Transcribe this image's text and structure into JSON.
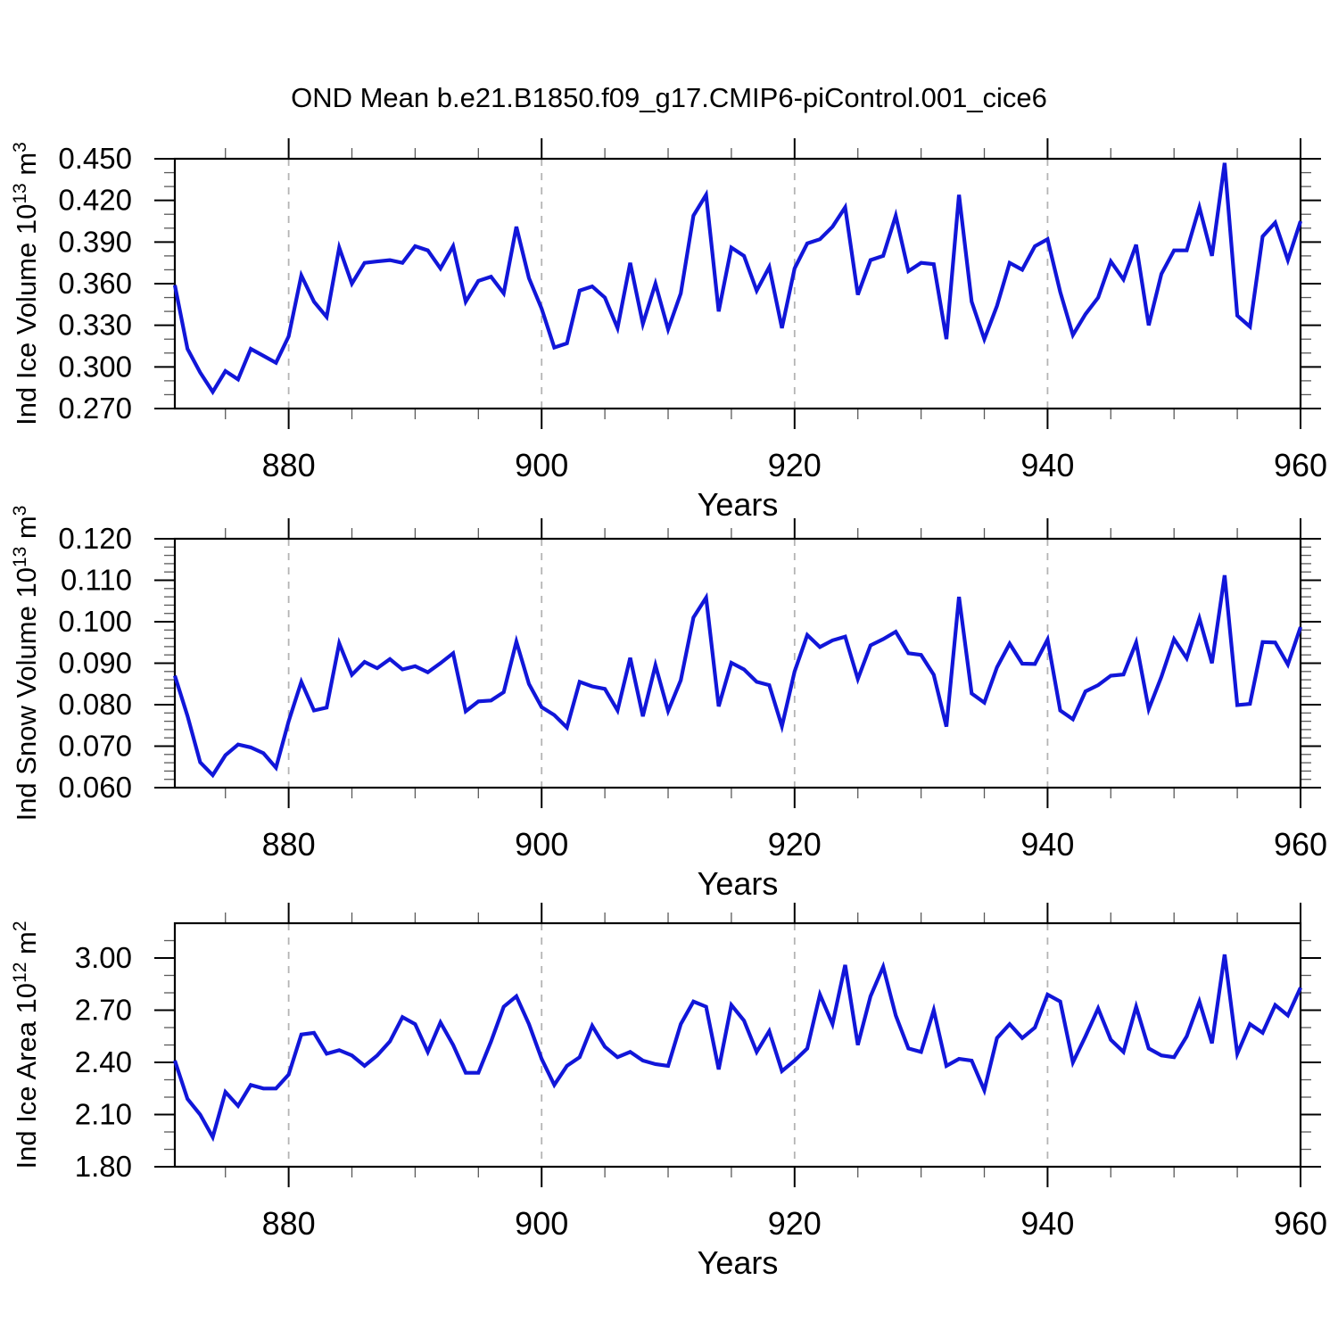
{
  "title": "OND Mean b.e21.B1850.f09_g17.CMIP6-piControl.001_cice6",
  "chart_data": {
    "type": "line",
    "title": "OND Mean b.e21.B1850.f09_g17.CMIP6-piControl.001_cice6",
    "xlabel": "Years",
    "line_color": "#1116d9",
    "gridline_color": "#b4b4b4",
    "grid_style": "vertical dashed at major x ticks",
    "x_axis": {
      "range": [
        871,
        960
      ],
      "major_ticks": [
        880,
        900,
        920,
        940,
        960
      ],
      "tick_labels": [
        "880",
        "900",
        "920",
        "940",
        "960"
      ],
      "minor_ticks": [
        875,
        885,
        890,
        895,
        905,
        910,
        915,
        925,
        930,
        935,
        945,
        950,
        955
      ],
      "gridlines_at": [
        880,
        900,
        920,
        940
      ]
    },
    "x": [
      871,
      872,
      873,
      874,
      875,
      876,
      877,
      878,
      879,
      880,
      881,
      882,
      883,
      884,
      885,
      886,
      887,
      888,
      889,
      890,
      891,
      892,
      893,
      894,
      895,
      896,
      897,
      898,
      899,
      900,
      901,
      902,
      903,
      904,
      905,
      906,
      907,
      908,
      909,
      910,
      911,
      912,
      913,
      914,
      915,
      916,
      917,
      918,
      919,
      920,
      921,
      922,
      923,
      924,
      925,
      926,
      927,
      928,
      929,
      930,
      931,
      932,
      933,
      934,
      935,
      936,
      937,
      938,
      939,
      940,
      941,
      942,
      943,
      944,
      945,
      946,
      947,
      948,
      949,
      950,
      951,
      952,
      953,
      954,
      955,
      956,
      957,
      958,
      959,
      960
    ],
    "series": [
      {
        "id": "ice-volume",
        "name": "Ind Ice Volume",
        "ylabel": "Ind Ice Volume 10^13 m^3",
        "ylabel_parts": {
          "base": "Ind Ice Volume 10",
          "exponent": "13",
          "unit": " m",
          "unit_exponent": "3"
        },
        "ylim": [
          0.27,
          0.45
        ],
        "y_major_ticks": [
          0.27,
          0.3,
          0.33,
          0.36,
          0.39,
          0.42,
          0.45
        ],
        "y_tick_labels": [
          "0.270",
          "0.300",
          "0.330",
          "0.360",
          "0.390",
          "0.420",
          "0.450"
        ],
        "y_minor_ticks": [
          0.28,
          0.29,
          0.31,
          0.32,
          0.34,
          0.35,
          0.37,
          0.38,
          0.4,
          0.41,
          0.43,
          0.44
        ],
        "values": [
          0.359,
          0.313,
          0.296,
          0.282,
          0.297,
          0.291,
          0.313,
          0.308,
          0.303,
          0.322,
          0.366,
          0.347,
          0.336,
          0.386,
          0.36,
          0.375,
          0.376,
          0.377,
          0.375,
          0.387,
          0.384,
          0.371,
          0.387,
          0.347,
          0.362,
          0.365,
          0.353,
          0.401,
          0.364,
          0.342,
          0.314,
          0.317,
          0.355,
          0.358,
          0.35,
          0.328,
          0.375,
          0.331,
          0.36,
          0.327,
          0.353,
          0.409,
          0.424,
          0.34,
          0.386,
          0.38,
          0.355,
          0.372,
          0.328,
          0.371,
          0.389,
          0.392,
          0.401,
          0.415,
          0.352,
          0.377,
          0.38,
          0.409,
          0.369,
          0.375,
          0.374,
          0.32,
          0.424,
          0.347,
          0.32,
          0.344,
          0.375,
          0.37,
          0.387,
          0.392,
          0.354,
          0.323,
          0.338,
          0.35,
          0.376,
          0.363,
          0.388,
          0.33,
          0.367,
          0.384,
          0.384,
          0.415,
          0.38,
          0.447,
          0.337,
          0.329,
          0.394,
          0.404,
          0.377,
          0.405
        ]
      },
      {
        "id": "snow-volume",
        "name": "Ind Snow Volume",
        "ylabel": "Ind Snow Volume 10^13 m^3",
        "ylabel_parts": {
          "base": "Ind Snow Volume 10",
          "exponent": "13",
          "unit": " m",
          "unit_exponent": "3"
        },
        "ylim": [
          0.06,
          0.12
        ],
        "y_major_ticks": [
          0.06,
          0.07,
          0.08,
          0.09,
          0.1,
          0.11,
          0.12
        ],
        "y_tick_labels": [
          "0.060",
          "0.070",
          "0.080",
          "0.090",
          "0.100",
          "0.110",
          "0.120"
        ],
        "y_minor_ticks": [
          0.062,
          0.064,
          0.066,
          0.068,
          0.072,
          0.074,
          0.076,
          0.078,
          0.082,
          0.084,
          0.086,
          0.088,
          0.092,
          0.094,
          0.096,
          0.098,
          0.102,
          0.104,
          0.106,
          0.108,
          0.112,
          0.114,
          0.116,
          0.118
        ],
        "values": [
          0.087,
          0.0773,
          0.0661,
          0.063,
          0.0678,
          0.0704,
          0.0697,
          0.0683,
          0.0648,
          0.076,
          0.0855,
          0.0786,
          0.0793,
          0.0948,
          0.0872,
          0.0903,
          0.0888,
          0.091,
          0.0885,
          0.0893,
          0.0878,
          0.09,
          0.0924,
          0.0784,
          0.0808,
          0.081,
          0.083,
          0.0952,
          0.085,
          0.0794,
          0.0775,
          0.0745,
          0.0855,
          0.0844,
          0.0838,
          0.0786,
          0.0913,
          0.0772,
          0.0895,
          0.0785,
          0.0859,
          0.101,
          0.1058,
          0.0796,
          0.0901,
          0.0885,
          0.0855,
          0.0847,
          0.0748,
          0.088,
          0.0968,
          0.0939,
          0.0955,
          0.0964,
          0.0862,
          0.0943,
          0.0958,
          0.0976,
          0.0924,
          0.092,
          0.0872,
          0.0747,
          0.106,
          0.0827,
          0.0805,
          0.089,
          0.0947,
          0.0899,
          0.0898,
          0.0957,
          0.0786,
          0.0765,
          0.0832,
          0.0847,
          0.087,
          0.0873,
          0.095,
          0.0789,
          0.0867,
          0.0958,
          0.0912,
          0.1008,
          0.09,
          0.1112,
          0.0799,
          0.0802,
          0.0951,
          0.095,
          0.0897,
          0.0987
        ]
      },
      {
        "id": "ice-area",
        "name": "Ind Ice Area",
        "ylabel": "Ind Ice Area 10^12 m^2",
        "ylabel_parts": {
          "base": "Ind Ice Area 10",
          "exponent": "12",
          "unit": " m",
          "unit_exponent": "2"
        },
        "ylim": [
          1.8,
          3.2
        ],
        "y_major_ticks": [
          1.8,
          2.1,
          2.4,
          2.7,
          3.0
        ],
        "y_tick_labels": [
          "1.80",
          "2.10",
          "2.40",
          "2.70",
          "3.00"
        ],
        "y_minor_ticks": [
          1.9,
          2.0,
          2.2,
          2.3,
          2.5,
          2.6,
          2.8,
          2.9,
          3.1
        ],
        "values": [
          2.41,
          2.19,
          2.1,
          1.97,
          2.23,
          2.15,
          2.27,
          2.25,
          2.25,
          2.33,
          2.56,
          2.57,
          2.45,
          2.47,
          2.44,
          2.38,
          2.44,
          2.52,
          2.66,
          2.62,
          2.46,
          2.63,
          2.5,
          2.34,
          2.34,
          2.52,
          2.72,
          2.78,
          2.62,
          2.42,
          2.27,
          2.38,
          2.43,
          2.61,
          2.49,
          2.43,
          2.46,
          2.41,
          2.39,
          2.38,
          2.62,
          2.75,
          2.72,
          2.36,
          2.73,
          2.64,
          2.46,
          2.58,
          2.35,
          2.41,
          2.48,
          2.79,
          2.62,
          2.96,
          2.5,
          2.78,
          2.95,
          2.67,
          2.48,
          2.46,
          2.7,
          2.38,
          2.42,
          2.41,
          2.24,
          2.54,
          2.62,
          2.54,
          2.6,
          2.79,
          2.75,
          2.4,
          2.55,
          2.71,
          2.53,
          2.46,
          2.72,
          2.48,
          2.44,
          2.43,
          2.55,
          2.75,
          2.51,
          3.02,
          2.45,
          2.62,
          2.57,
          2.73,
          2.67,
          2.83
        ]
      }
    ]
  }
}
